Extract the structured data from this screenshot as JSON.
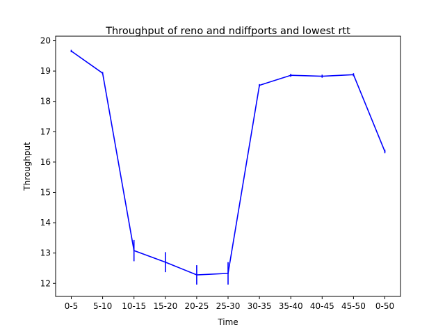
{
  "chart_data": {
    "type": "line",
    "title": "Throughput of reno and ndiffports and lowest rtt",
    "xlabel": "Time",
    "ylabel": "Throughput",
    "categories": [
      "0-5",
      "5-10",
      "10-15",
      "15-20",
      "20-25",
      "25-30",
      "30-35",
      "35-40",
      "40-45",
      "45-50",
      "0-50"
    ],
    "series": [
      {
        "values": [
          19.66,
          18.93,
          13.08,
          12.7,
          12.28,
          12.33,
          18.53,
          18.86,
          18.83,
          18.88,
          16.35
        ],
        "errors": [
          0.04,
          0.04,
          0.35,
          0.33,
          0.32,
          0.37,
          0.04,
          0.05,
          0.05,
          0.05,
          0.06
        ]
      }
    ],
    "ylim": [
      11.57,
      20.15
    ],
    "yticks": [
      12,
      13,
      14,
      15,
      16,
      17,
      18,
      19,
      20
    ],
    "color": "#0000ff",
    "grid": false,
    "legend": "none"
  }
}
